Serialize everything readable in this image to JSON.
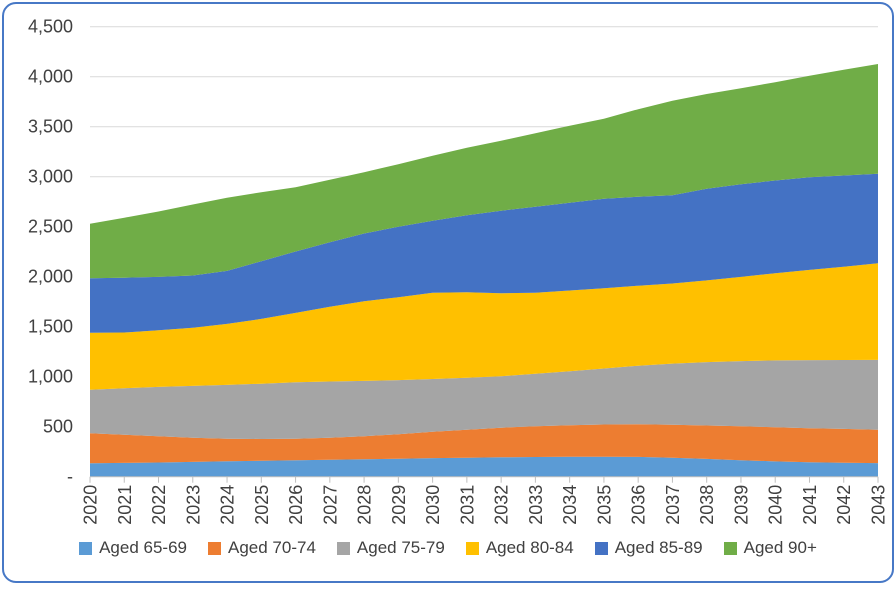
{
  "chart_data": {
    "type": "area",
    "stacked": true,
    "grid": true,
    "legend_position": "bottom",
    "ylim": [
      0,
      4500
    ],
    "y_tick_step": 500,
    "y_tick_labels_top_to_bottom": [
      "4,500",
      "4,000",
      "3,500",
      "3,000",
      "2,500",
      "2,000",
      "1,500",
      "1,000",
      "500",
      "-"
    ],
    "categories": [
      "2020",
      "2021",
      "2022",
      "2023",
      "2024",
      "2025",
      "2026",
      "2027",
      "2028",
      "2029",
      "2030",
      "2031",
      "2032",
      "2033",
      "2034",
      "2035",
      "2036",
      "2037",
      "2038",
      "2039",
      "2040",
      "2041",
      "2042",
      "2043"
    ],
    "series": [
      {
        "name": "Aged 65-69",
        "color": "#5B9BD5",
        "values": [
          135,
          138,
          142,
          148,
          154,
          159,
          165,
          170,
          175,
          180,
          186,
          190,
          194,
          197,
          200,
          200,
          198,
          190,
          178,
          165,
          153,
          145,
          140,
          136
        ]
      },
      {
        "name": "Aged 70-74",
        "color": "#ED7D31",
        "values": [
          300,
          282,
          263,
          242,
          226,
          218,
          215,
          220,
          230,
          245,
          264,
          280,
          296,
          308,
          315,
          322,
          327,
          330,
          334,
          340,
          342,
          340,
          338,
          334
        ]
      },
      {
        "name": "Aged 75-79",
        "color": "#A5A5A5",
        "values": [
          435,
          465,
          493,
          518,
          538,
          553,
          565,
          562,
          553,
          541,
          527,
          520,
          515,
          525,
          540,
          560,
          585,
          611,
          634,
          651,
          668,
          681,
          689,
          698
        ]
      },
      {
        "name": "Aged 80-84",
        "color": "#FFC000",
        "values": [
          570,
          557,
          566,
          582,
          610,
          648,
          693,
          748,
          797,
          829,
          863,
          855,
          830,
          810,
          807,
          803,
          800,
          801,
          817,
          842,
          872,
          902,
          933,
          967
        ]
      },
      {
        "name": "Aged 85-89",
        "color": "#4472C4",
        "values": [
          545,
          548,
          534,
          522,
          530,
          577,
          614,
          645,
          677,
          705,
          720,
          769,
          825,
          860,
          878,
          895,
          890,
          883,
          917,
          927,
          927,
          926,
          912,
          895
        ]
      },
      {
        "name": "Aged 90+",
        "color": "#70AD47",
        "values": [
          545,
          600,
          654,
          710,
          732,
          690,
          643,
          625,
          613,
          625,
          650,
          676,
          700,
          735,
          770,
          800,
          875,
          945,
          947,
          960,
          983,
          1016,
          1058,
          1097
        ]
      }
    ]
  },
  "style_colors": {
    "frame_border": "#4778c6",
    "gridline": "#D9D9D9",
    "axis_line": "#BFBFBF",
    "tick": "#BFBFBF",
    "axis_label": "#404040"
  }
}
